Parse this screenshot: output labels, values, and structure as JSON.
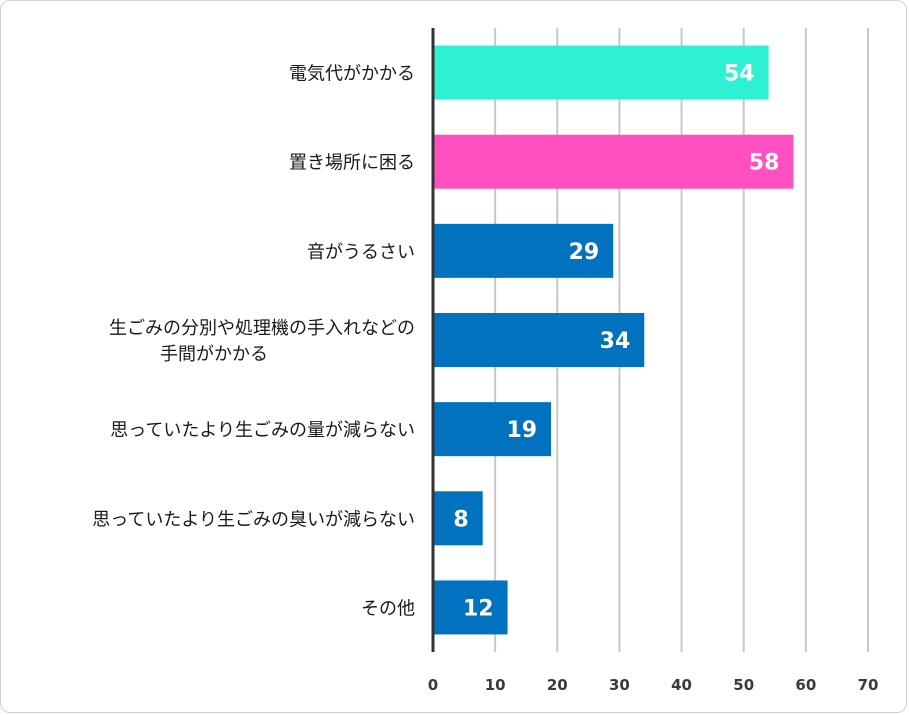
{
  "chart_data": {
    "type": "bar",
    "orientation": "horizontal",
    "categories": [
      [
        "電気代がかかる"
      ],
      [
        "置き場所に困る"
      ],
      [
        "音がうるさい"
      ],
      [
        "生ごみの分別や処理機の手入れなどの",
        "手間がかかる"
      ],
      [
        "思っていたより生ごみの量が減らない"
      ],
      [
        "思っていたより生ごみの臭いが減らない"
      ],
      [
        "その他"
      ]
    ],
    "values": [
      54,
      58,
      29,
      34,
      19,
      8,
      12
    ],
    "colors": [
      "#2ef0d2",
      "#ff4fc0",
      "#0072c0",
      "#0072c0",
      "#0072c0",
      "#0072c0",
      "#0072c0"
    ],
    "xlim": [
      0,
      70
    ],
    "xticks": [
      0,
      10,
      20,
      30,
      40,
      50,
      60,
      70
    ],
    "grid": true,
    "title": "",
    "xlabel": "",
    "ylabel": "",
    "colors_axis": {
      "grid": "#c8c8c8",
      "axis": "#333333"
    }
  }
}
